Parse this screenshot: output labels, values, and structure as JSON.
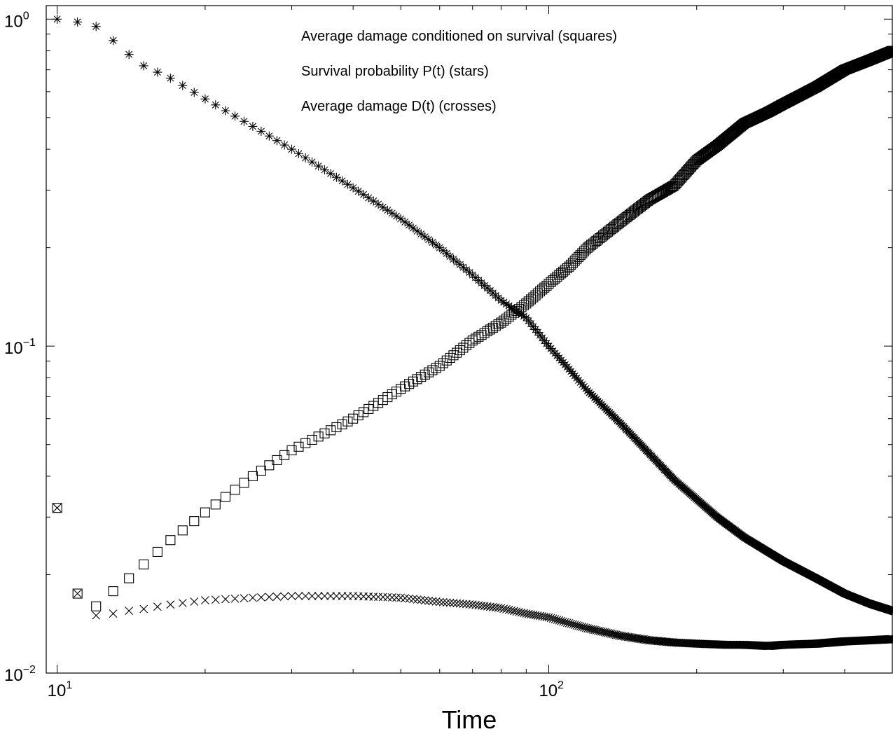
{
  "chart_data": {
    "type": "scatter",
    "title": "",
    "xlabel": "Time",
    "ylabel": "",
    "x_scale": "log",
    "y_scale": "log",
    "xlim": [
      9.5,
      500
    ],
    "ylim": [
      0.01,
      1.1
    ],
    "grid": false,
    "legend": "none",
    "x_ticks": [
      {
        "value": 10,
        "base": "10",
        "exp": "1"
      },
      {
        "value": 100,
        "base": "10",
        "exp": "2"
      }
    ],
    "y_ticks": [
      {
        "value": 0.01,
        "base": "10",
        "exp": "−2"
      },
      {
        "value": 0.1,
        "base": "10",
        "exp": "−1"
      },
      {
        "value": 1,
        "base": "10",
        "exp": "0"
      }
    ],
    "annotations": [
      "Average damage conditioned on survival (squares)",
      "Survival probability P(t) (stars)",
      "Average damage D(t) (crosses)"
    ],
    "x_range": {
      "start": 10,
      "end": 500
    },
    "series": [
      {
        "marker": "square",
        "points": [
          [
            10,
            0.032
          ],
          [
            11,
            0.0175
          ],
          [
            12,
            0.016
          ],
          [
            13,
            0.0178
          ],
          [
            14,
            0.0195
          ],
          [
            15,
            0.0215
          ],
          [
            17,
            0.0255
          ],
          [
            20,
            0.031
          ],
          [
            25,
            0.04
          ],
          [
            30,
            0.048
          ],
          [
            40,
            0.06
          ],
          [
            50,
            0.074
          ],
          [
            60,
            0.087
          ],
          [
            70,
            0.104
          ],
          [
            80,
            0.118
          ],
          [
            90,
            0.135
          ],
          [
            100,
            0.155
          ],
          [
            110,
            0.175
          ],
          [
            120,
            0.2
          ],
          [
            140,
            0.24
          ],
          [
            160,
            0.28
          ],
          [
            180,
            0.31
          ],
          [
            200,
            0.37
          ],
          [
            220,
            0.41
          ],
          [
            250,
            0.48
          ],
          [
            280,
            0.52
          ],
          [
            300,
            0.55
          ],
          [
            350,
            0.62
          ],
          [
            400,
            0.7
          ],
          [
            450,
            0.75
          ],
          [
            500,
            0.8
          ]
        ]
      },
      {
        "marker": "star",
        "points": [
          [
            10,
            1.0
          ],
          [
            11,
            0.98
          ],
          [
            12,
            0.95
          ],
          [
            13,
            0.86
          ],
          [
            14,
            0.78
          ],
          [
            15,
            0.72
          ],
          [
            17,
            0.66
          ],
          [
            20,
            0.57
          ],
          [
            25,
            0.47
          ],
          [
            30,
            0.4
          ],
          [
            40,
            0.305
          ],
          [
            50,
            0.245
          ],
          [
            60,
            0.2
          ],
          [
            70,
            0.165
          ],
          [
            80,
            0.138
          ],
          [
            90,
            0.122
          ],
          [
            100,
            0.1
          ],
          [
            110,
            0.085
          ],
          [
            120,
            0.073
          ],
          [
            140,
            0.058
          ],
          [
            160,
            0.047
          ],
          [
            180,
            0.039
          ],
          [
            200,
            0.034
          ],
          [
            220,
            0.03
          ],
          [
            250,
            0.026
          ],
          [
            300,
            0.022
          ],
          [
            350,
            0.0195
          ],
          [
            400,
            0.0175
          ],
          [
            450,
            0.0163
          ],
          [
            500,
            0.0155
          ]
        ]
      },
      {
        "marker": "cross",
        "points": [
          [
            10,
            0.032
          ],
          [
            11,
            0.0175
          ],
          [
            12,
            0.015
          ],
          [
            13,
            0.0152
          ],
          [
            14,
            0.0155
          ],
          [
            15,
            0.0157
          ],
          [
            17,
            0.0162
          ],
          [
            20,
            0.0167
          ],
          [
            25,
            0.017
          ],
          [
            30,
            0.0172
          ],
          [
            40,
            0.0172
          ],
          [
            50,
            0.017
          ],
          [
            60,
            0.0165
          ],
          [
            70,
            0.0162
          ],
          [
            80,
            0.0158
          ],
          [
            90,
            0.0152
          ],
          [
            100,
            0.0148
          ],
          [
            110,
            0.0142
          ],
          [
            120,
            0.0137
          ],
          [
            140,
            0.013
          ],
          [
            160,
            0.0126
          ],
          [
            180,
            0.0124
          ],
          [
            200,
            0.0123
          ],
          [
            230,
            0.0122
          ],
          [
            250,
            0.0122
          ],
          [
            280,
            0.0121
          ],
          [
            300,
            0.0122
          ],
          [
            350,
            0.0123
          ],
          [
            400,
            0.0125
          ],
          [
            450,
            0.0126
          ],
          [
            500,
            0.0127
          ]
        ]
      }
    ]
  }
}
